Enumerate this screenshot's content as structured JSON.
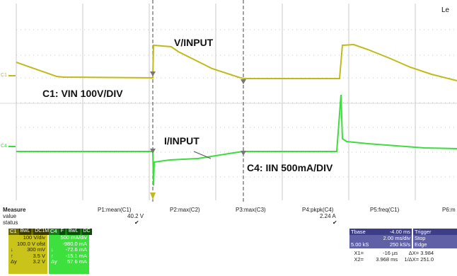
{
  "scope": {
    "corner_label": "Le",
    "ch1_marker": "C1",
    "ch4_marker": "C4",
    "annotations": {
      "v_input": "V/INPUT",
      "c1_scale": "C1: VIN 100V/DIV",
      "i_input": "I/INPUT",
      "c4_scale": "C4: IIN 500mA/DIV"
    },
    "colors": {
      "ch1": "#c0ba1a",
      "ch4": "#3fdc3f",
      "grid": "#c8c8c8",
      "cursor": "#444444"
    }
  },
  "measure": {
    "row_labels": [
      "Measure",
      "value",
      "status"
    ],
    "columns": [
      {
        "param": "P1:mean(C1)",
        "value": "40.2 V",
        "status": "✔"
      },
      {
        "param": "P2:max(C2)",
        "value": "",
        "status": ""
      },
      {
        "param": "P3:max(C3)",
        "value": "",
        "status": ""
      },
      {
        "param": "P4:pkpk(C4)",
        "value": "2.24 A",
        "status": "✔"
      },
      {
        "param": "P5:freq(C1)",
        "value": "",
        "status": ""
      },
      {
        "param": "P6:m",
        "value": "",
        "status": ""
      }
    ]
  },
  "c1_box": {
    "name": "C1",
    "tags": [
      "BwL",
      "DC1M"
    ],
    "rows": [
      "100 V/div",
      "100.0 V ofst",
      "300 mV",
      "3.5 V",
      "3.2 V"
    ],
    "side": [
      "",
      "",
      "↓",
      "↑",
      "Δy"
    ]
  },
  "c4_box": {
    "name": "C4",
    "tags": [
      "F",
      "BwL",
      "DC"
    ],
    "rows": [
      "500 mA/div",
      "-980.0 mA",
      "-72.6 mA",
      "-15.1 mA",
      "57.6 mA"
    ],
    "side": [
      "",
      "",
      "↓",
      "↑",
      "Δy"
    ]
  },
  "timebase": {
    "label": "Tbase",
    "offset": "-4.00 ms",
    "div": "2.00 ms/div",
    "samples": "5.00 kS",
    "rate": "250 kS/s"
  },
  "trigger": {
    "label": "Trigger",
    "mode": "Stop",
    "type": "Edge"
  },
  "cursors": {
    "x1_label": "X1=",
    "x1": "-16 µs",
    "dx_label": "ΔX=",
    "dx": "3.984",
    "x2_label": "X2=",
    "x2": "3.968 ms",
    "inv_label": "1/ΔX=",
    "inv": "251.0"
  }
}
